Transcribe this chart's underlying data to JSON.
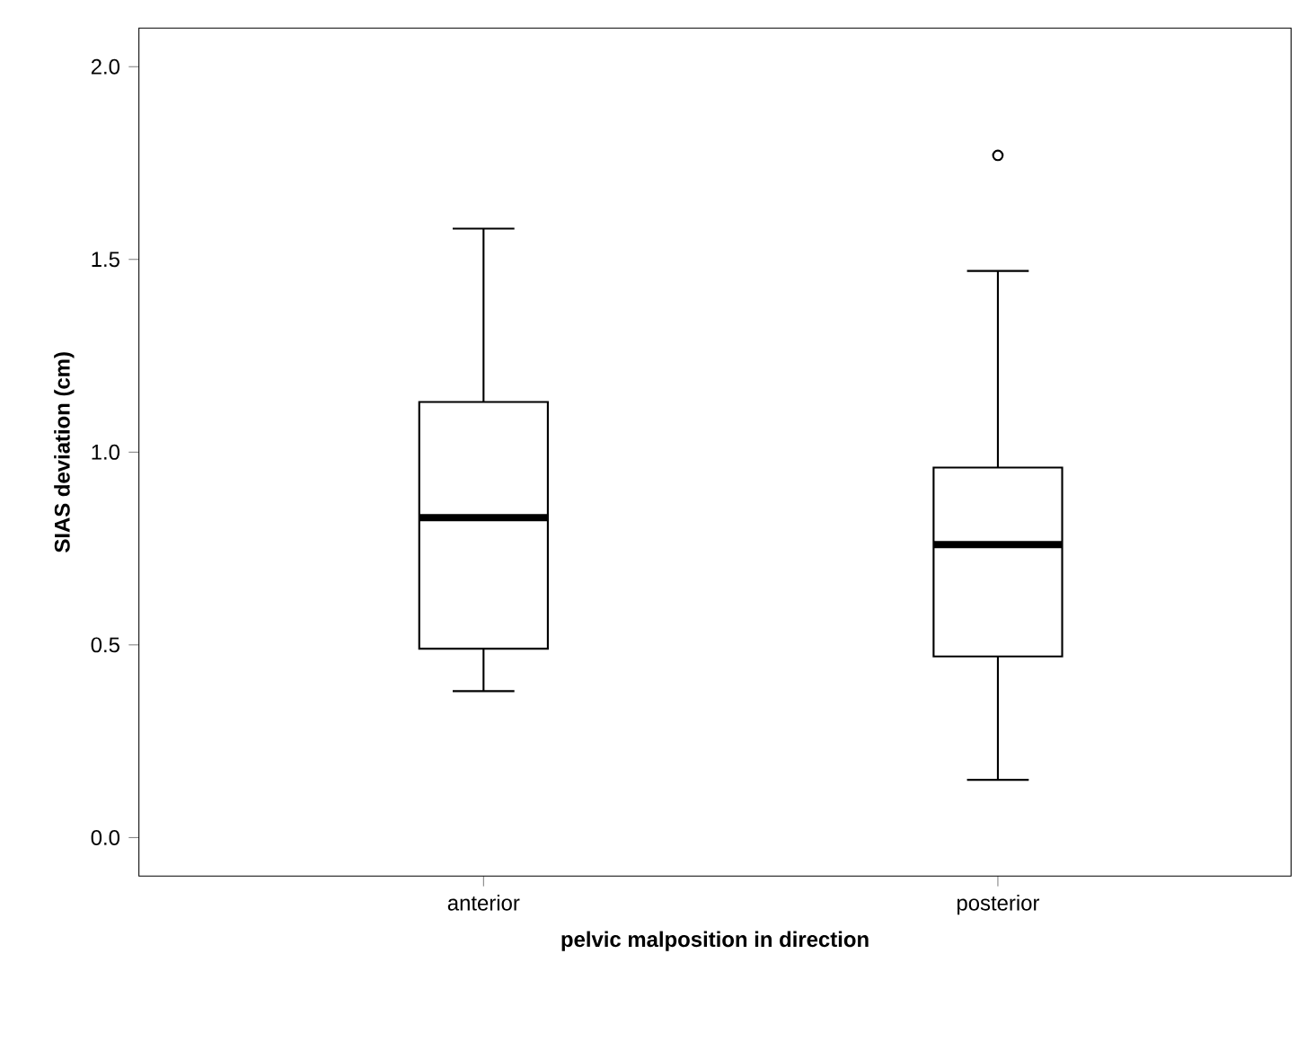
{
  "chart_data": {
    "type": "box",
    "xlabel": "pelvic malposition in direction",
    "ylabel": "SIAS deviation (cm)",
    "categories": [
      "anterior",
      "posterior"
    ],
    "boxes": [
      {
        "low": 0.38,
        "q1": 0.49,
        "median": 0.83,
        "q3": 1.13,
        "high": 1.58
      },
      {
        "low": 0.15,
        "q1": 0.47,
        "median": 0.76,
        "q3": 0.96,
        "high": 1.47,
        "outliers": [
          1.77
        ]
      }
    ],
    "ylim": [
      -0.1,
      2.1
    ],
    "yticks": [
      {
        "value": 0,
        "label": "0.0"
      },
      0.5,
      {
        "value": 1,
        "label": "1.0"
      },
      1.5,
      {
        "value": 2,
        "label": "2.0"
      }
    ],
    "grid": false,
    "color": "#000000"
  }
}
